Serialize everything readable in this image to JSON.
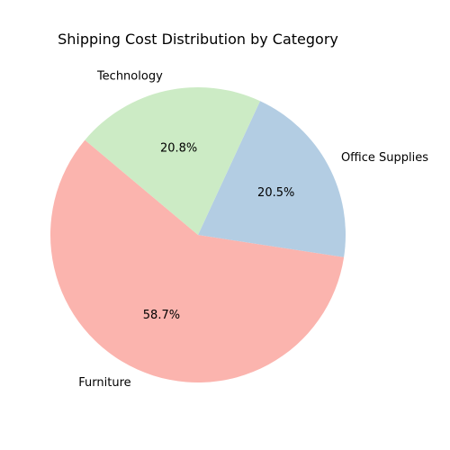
{
  "chart_data": {
    "type": "pie",
    "title": "Shipping Cost Distribution by Category",
    "start_angle_deg": 140,
    "direction": "counterclockwise",
    "slices": [
      {
        "label": "Furniture",
        "value": 58.7,
        "pct_label": "58.7%",
        "color": "#fbb4ae"
      },
      {
        "label": "Office Supplies",
        "value": 20.5,
        "pct_label": "20.5%",
        "color": "#b3cde3"
      },
      {
        "label": "Technology",
        "value": 20.8,
        "pct_label": "20.8%",
        "color": "#ccebc5"
      }
    ]
  }
}
